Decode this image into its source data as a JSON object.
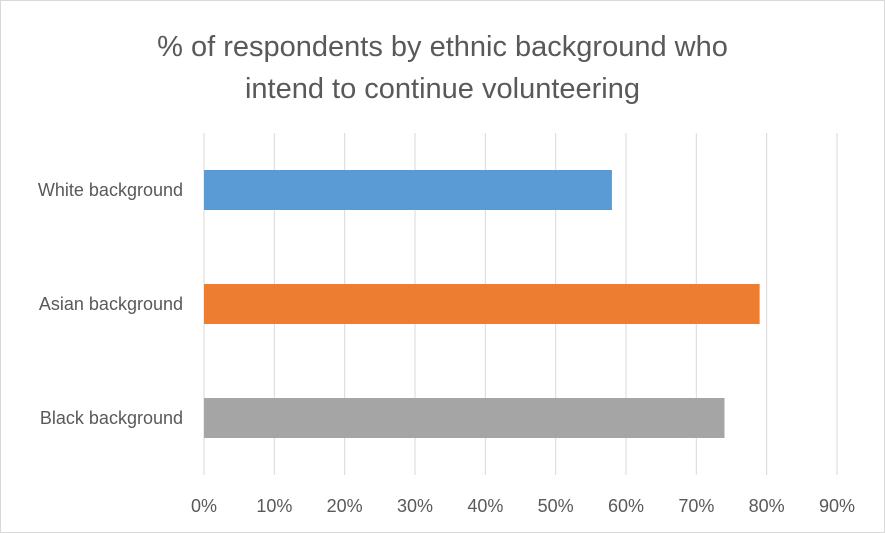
{
  "chart_data": {
    "type": "bar",
    "orientation": "horizontal",
    "title_line1": "% of respondents  by ethnic background who",
    "title_line2": "intend to continue volunteering",
    "categories": [
      "White background",
      "Asian background",
      "Black background"
    ],
    "values": [
      58,
      79,
      74
    ],
    "colors": [
      "#5b9bd5",
      "#ed7d31",
      "#a5a5a5"
    ],
    "xlim": [
      0,
      90
    ],
    "xticks": [
      "0%",
      "10%",
      "20%",
      "30%",
      "40%",
      "50%",
      "60%",
      "70%",
      "80%",
      "90%"
    ],
    "xlabel": "",
    "ylabel": "",
    "grid": true,
    "legend": "none"
  }
}
